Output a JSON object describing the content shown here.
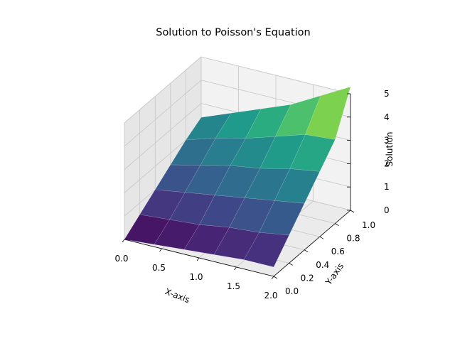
{
  "chart_data": {
    "type": "surface3d",
    "title": "Solution to Poisson's Equation",
    "xlabel": "X-axis",
    "ylabel": "Y-axis",
    "zlabel": "Solution",
    "xlim": [
      0.0,
      2.0
    ],
    "ylim": [
      0.0,
      1.0
    ],
    "zlim": [
      0,
      5
    ],
    "x_ticks": [
      "0.0",
      "0.5",
      "1.0",
      "1.5",
      "2.0"
    ],
    "y_ticks": [
      "0.0",
      "0.2",
      "0.4",
      "0.6",
      "0.8",
      "1.0"
    ],
    "z_ticks": [
      "0",
      "1",
      "2",
      "3",
      "4",
      "5"
    ],
    "colormap": "viridis",
    "x": [
      0.0,
      0.4,
      0.8,
      1.2,
      1.6,
      2.0
    ],
    "y": [
      0.0,
      0.2,
      0.4,
      0.6,
      0.8,
      1.0
    ],
    "z": [
      [
        0.0,
        0.1,
        0.2,
        0.3,
        0.4,
        0.4
      ],
      [
        0.5,
        0.6,
        0.7,
        0.9,
        1.0,
        1.2
      ],
      [
        1.0,
        1.2,
        1.4,
        1.6,
        1.8,
        2.0
      ],
      [
        1.5,
        1.8,
        2.1,
        2.3,
        2.6,
        2.8
      ],
      [
        2.0,
        2.4,
        2.7,
        3.1,
        3.5,
        3.6
      ],
      [
        2.4,
        2.9,
        3.4,
        3.9,
        4.6,
        5.3
      ]
    ],
    "grid": true
  }
}
